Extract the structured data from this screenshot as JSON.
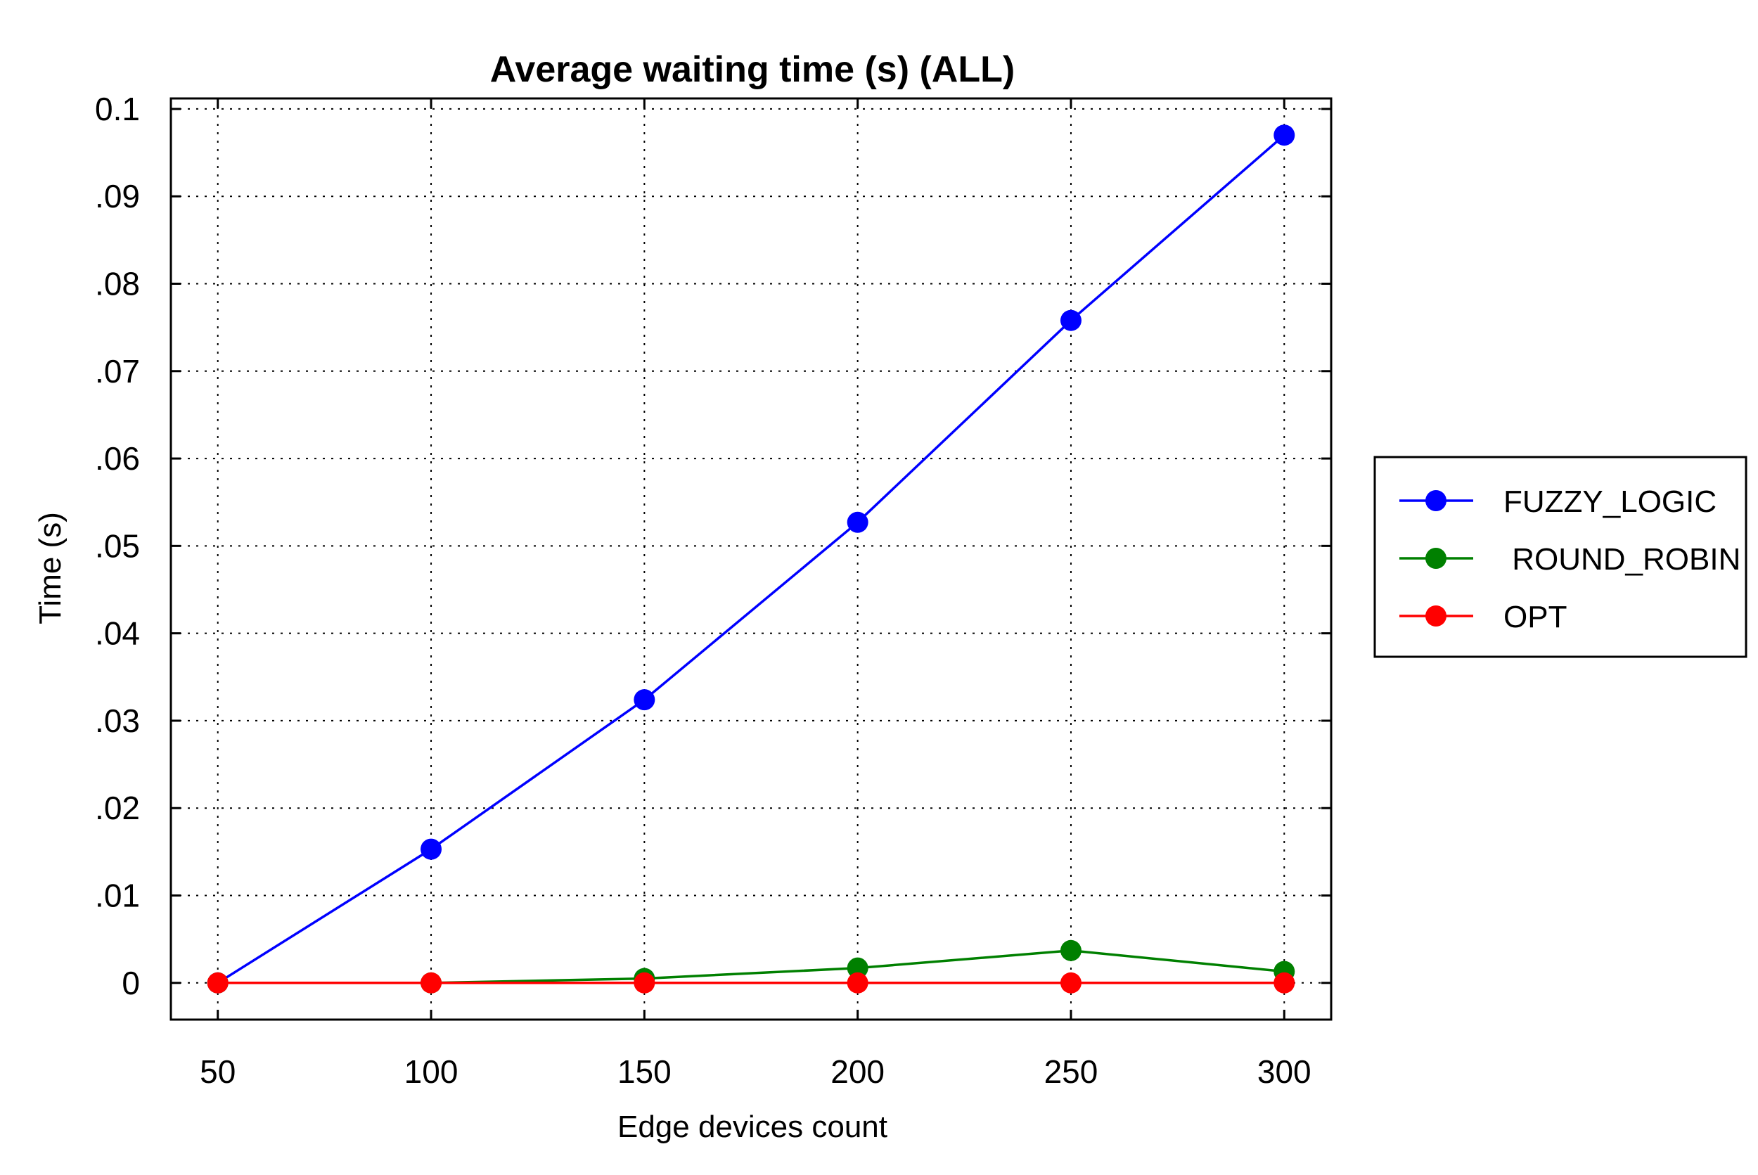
{
  "chart_data": {
    "type": "line",
    "title": "Average waiting time (s) (ALL)",
    "xlabel": "Edge devices count",
    "ylabel": "Time (s)",
    "x": [
      50,
      100,
      150,
      200,
      250,
      300
    ],
    "xlim": [
      39,
      311
    ],
    "ylim": [
      -0.0042,
      0.1012
    ],
    "xticks": [
      50,
      100,
      150,
      200,
      250,
      300
    ],
    "xtick_labels": [
      "50",
      "100",
      "150",
      "200",
      "250",
      "300"
    ],
    "yticks": [
      0,
      0.01,
      0.02,
      0.03,
      0.04,
      0.05,
      0.06,
      0.07,
      0.08,
      0.09,
      0.1
    ],
    "ytick_labels": [
      "0",
      ".01",
      ".02",
      ".03",
      ".04",
      ".05",
      ".06",
      ".07",
      ".08",
      ".09",
      "0.1"
    ],
    "grid": true,
    "legend_position": "right, outside plot",
    "series": [
      {
        "name": "FUZZY_LOGIC",
        "color": "#0000ff",
        "values": [
          0.0,
          0.0153,
          0.0324,
          0.0527,
          0.0758,
          0.097
        ]
      },
      {
        "name": " ROUND_ROBIN",
        "color": "#008000",
        "values": [
          0.0,
          0.0,
          0.0005,
          0.0017,
          0.0037,
          0.0013
        ]
      },
      {
        "name": "OPT",
        "color": "#ff0000",
        "values": [
          0.0,
          0.0,
          0.0,
          0.0,
          0.0,
          0.0
        ]
      }
    ]
  }
}
